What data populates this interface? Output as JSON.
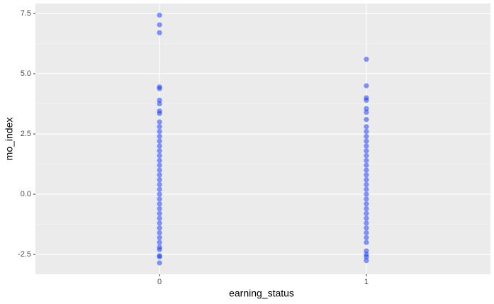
{
  "chart_data": {
    "type": "scatter",
    "x_label": "earning_status",
    "y_label": "mo_index",
    "x": [
      0,
      0,
      0,
      0,
      0,
      0,
      0,
      0,
      0,
      0,
      0,
      0,
      0,
      0,
      0,
      0,
      0,
      0,
      0,
      0,
      0,
      0,
      0,
      0,
      0,
      0,
      0,
      0,
      0,
      0,
      0,
      0,
      0,
      0,
      0,
      0,
      0,
      0,
      0,
      0,
      1,
      1,
      1,
      1,
      1,
      1,
      1,
      1,
      1,
      1,
      1,
      1,
      1,
      1,
      1,
      1,
      1,
      1,
      1,
      1,
      1,
      1,
      1,
      1,
      1,
      1,
      1,
      1,
      1,
      1,
      1,
      1,
      1,
      1,
      1,
      1
    ],
    "values": [
      7.43,
      7.03,
      6.7,
      4.45,
      4.38,
      3.9,
      3.75,
      3.45,
      3.35,
      -2.3,
      -2.55,
      -2.6,
      -2.85,
      -2.2,
      -2,
      -1.8,
      -1.6,
      -1.4,
      -1.2,
      -1,
      -0.8,
      -0.6,
      -0.4,
      -0.2,
      0,
      0.2,
      0.4,
      0.6,
      0.8,
      1,
      1.2,
      1.4,
      1.6,
      1.8,
      2,
      2.2,
      2.4,
      2.6,
      2.8,
      3,
      5.6,
      4.5,
      4,
      3.9,
      3.55,
      3.4,
      3.1,
      -2.35,
      -2.5,
      -2.6,
      -2.75,
      -2,
      -1.8,
      -1.6,
      -1.4,
      -1.2,
      -1,
      -0.8,
      -0.6,
      -0.4,
      -0.2,
      0,
      0.2,
      0.4,
      0.6,
      0.8,
      1,
      1.2,
      1.4,
      1.6,
      1.8,
      2,
      2.2,
      2.4,
      2.6,
      2.8
    ],
    "color": "#0a32ff",
    "xlim": [
      -0.6,
      1.6
    ],
    "xticks": [
      0,
      1
    ],
    "ylim": [
      -3.32,
      7.91
    ],
    "yticks": [
      -2.5,
      {
        "value": 0,
        "label": "0.0"
      },
      2.5,
      {
        "value": 5,
        "label": "5.0"
      },
      7.5
    ],
    "grid": true
  }
}
